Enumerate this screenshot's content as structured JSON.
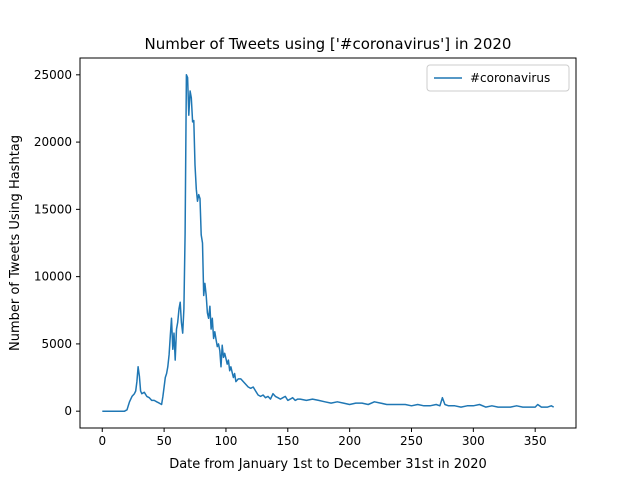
{
  "chart_data": {
    "type": "line",
    "title": "Number of Tweets using ['#coronavirus'] in 2020",
    "xlabel": "Date from January 1st to December 31st in 2020",
    "ylabel": "Number of Tweets Using Hashtag",
    "xlim": [
      -18,
      383
    ],
    "ylim": [
      -1250,
      26250
    ],
    "xticks": [
      0,
      50,
      100,
      150,
      200,
      250,
      300,
      350
    ],
    "yticks": [
      0,
      5000,
      10000,
      15000,
      20000,
      25000
    ],
    "xtick_labels": [
      "0",
      "50",
      "100",
      "150",
      "200",
      "250",
      "300",
      "350"
    ],
    "ytick_labels": [
      "0",
      "5000",
      "10000",
      "15000",
      "20000",
      "25000"
    ],
    "grid": false,
    "legend_position": "top-right",
    "colors": {
      "series": "#1f77b4",
      "axes": "#000000"
    },
    "series": [
      {
        "name": "#coronavirus",
        "x": [
          0,
          5,
          10,
          15,
          18,
          20,
          22,
          24,
          26,
          27,
          28,
          29,
          30,
          31,
          32,
          34,
          36,
          38,
          40,
          42,
          44,
          46,
          48,
          49,
          50,
          51,
          52,
          53,
          54,
          55,
          56,
          57,
          58,
          59,
          60,
          61,
          62,
          63,
          64,
          65,
          66,
          67,
          68,
          69,
          70,
          71,
          72,
          73,
          74,
          75,
          76,
          77,
          78,
          79,
          80,
          81,
          82,
          83,
          84,
          85,
          86,
          87,
          88,
          89,
          90,
          91,
          92,
          93,
          94,
          95,
          96,
          97,
          98,
          99,
          100,
          101,
          102,
          103,
          104,
          105,
          106,
          107,
          108,
          110,
          112,
          114,
          116,
          118,
          120,
          122,
          124,
          126,
          128,
          130,
          132,
          134,
          136,
          138,
          140,
          142,
          144,
          146,
          148,
          150,
          152,
          154,
          156,
          158,
          160,
          165,
          170,
          175,
          180,
          185,
          190,
          195,
          200,
          205,
          210,
          215,
          220,
          225,
          230,
          235,
          240,
          245,
          250,
          255,
          260,
          265,
          270,
          273,
          275,
          277,
          280,
          285,
          290,
          295,
          300,
          305,
          310,
          315,
          320,
          325,
          330,
          335,
          340,
          345,
          350,
          352,
          355,
          360,
          363,
          365
        ],
        "values": [
          0,
          0,
          0,
          0,
          0,
          100,
          700,
          1100,
          1300,
          1500,
          2200,
          3300,
          2600,
          1500,
          1300,
          1400,
          1100,
          1000,
          800,
          800,
          700,
          600,
          500,
          1100,
          1800,
          2500,
          2800,
          3300,
          4200,
          5600,
          6900,
          4600,
          5800,
          3800,
          6100,
          6600,
          7600,
          8100,
          6600,
          5800,
          7600,
          13200,
          25000,
          24800,
          22000,
          23800,
          23300,
          21500,
          21600,
          18300,
          16500,
          15600,
          16100,
          15800,
          13100,
          12500,
          8600,
          9500,
          8600,
          7300,
          6900,
          7800,
          6100,
          6900,
          5400,
          5900,
          5300,
          4800,
          5000,
          4500,
          3300,
          4900,
          4000,
          4300,
          3900,
          3500,
          3800,
          3000,
          3300,
          2900,
          2500,
          2800,
          2200,
          2400,
          2400,
          2200,
          2000,
          1800,
          1700,
          1800,
          1500,
          1200,
          1100,
          1200,
          1000,
          1100,
          900,
          1300,
          1100,
          1000,
          900,
          1000,
          1100,
          800,
          900,
          1000,
          800,
          900,
          900,
          800,
          900,
          800,
          700,
          600,
          700,
          600,
          500,
          600,
          600,
          500,
          700,
          600,
          500,
          500,
          500,
          500,
          400,
          500,
          400,
          400,
          500,
          400,
          1000,
          500,
          400,
          400,
          300,
          400,
          400,
          500,
          300,
          400,
          300,
          300,
          300,
          400,
          300,
          300,
          300,
          500,
          300,
          300,
          400,
          300
        ]
      }
    ]
  }
}
